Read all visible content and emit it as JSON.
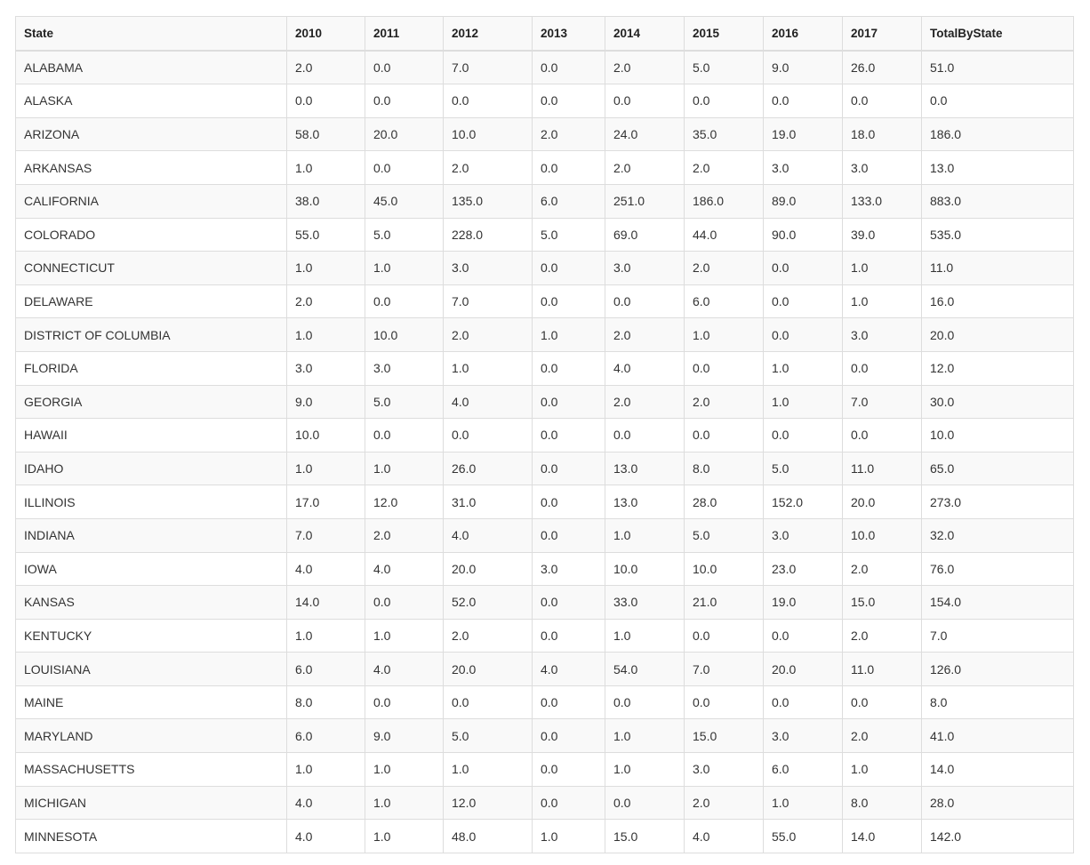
{
  "table": {
    "headers": [
      "State",
      "2010",
      "2011",
      "2012",
      "2013",
      "2014",
      "2015",
      "2016",
      "2017",
      "TotalByState"
    ],
    "rows": [
      [
        "ALABAMA",
        "2.0",
        "0.0",
        "7.0",
        "0.0",
        "2.0",
        "5.0",
        "9.0",
        "26.0",
        "51.0"
      ],
      [
        "ALASKA",
        "0.0",
        "0.0",
        "0.0",
        "0.0",
        "0.0",
        "0.0",
        "0.0",
        "0.0",
        "0.0"
      ],
      [
        "ARIZONA",
        "58.0",
        "20.0",
        "10.0",
        "2.0",
        "24.0",
        "35.0",
        "19.0",
        "18.0",
        "186.0"
      ],
      [
        "ARKANSAS",
        "1.0",
        "0.0",
        "2.0",
        "0.0",
        "2.0",
        "2.0",
        "3.0",
        "3.0",
        "13.0"
      ],
      [
        "CALIFORNIA",
        "38.0",
        "45.0",
        "135.0",
        "6.0",
        "251.0",
        "186.0",
        "89.0",
        "133.0",
        "883.0"
      ],
      [
        "COLORADO",
        "55.0",
        "5.0",
        "228.0",
        "5.0",
        "69.0",
        "44.0",
        "90.0",
        "39.0",
        "535.0"
      ],
      [
        "CONNECTICUT",
        "1.0",
        "1.0",
        "3.0",
        "0.0",
        "3.0",
        "2.0",
        "0.0",
        "1.0",
        "11.0"
      ],
      [
        "DELAWARE",
        "2.0",
        "0.0",
        "7.0",
        "0.0",
        "0.0",
        "6.0",
        "0.0",
        "1.0",
        "16.0"
      ],
      [
        "DISTRICT OF COLUMBIA",
        "1.0",
        "10.0",
        "2.0",
        "1.0",
        "2.0",
        "1.0",
        "0.0",
        "3.0",
        "20.0"
      ],
      [
        "FLORIDA",
        "3.0",
        "3.0",
        "1.0",
        "0.0",
        "4.0",
        "0.0",
        "1.0",
        "0.0",
        "12.0"
      ],
      [
        "GEORGIA",
        "9.0",
        "5.0",
        "4.0",
        "0.0",
        "2.0",
        "2.0",
        "1.0",
        "7.0",
        "30.0"
      ],
      [
        "HAWAII",
        "10.0",
        "0.0",
        "0.0",
        "0.0",
        "0.0",
        "0.0",
        "0.0",
        "0.0",
        "10.0"
      ],
      [
        "IDAHO",
        "1.0",
        "1.0",
        "26.0",
        "0.0",
        "13.0",
        "8.0",
        "5.0",
        "11.0",
        "65.0"
      ],
      [
        "ILLINOIS",
        "17.0",
        "12.0",
        "31.0",
        "0.0",
        "13.0",
        "28.0",
        "152.0",
        "20.0",
        "273.0"
      ],
      [
        "INDIANA",
        "7.0",
        "2.0",
        "4.0",
        "0.0",
        "1.0",
        "5.0",
        "3.0",
        "10.0",
        "32.0"
      ],
      [
        "IOWA",
        "4.0",
        "4.0",
        "20.0",
        "3.0",
        "10.0",
        "10.0",
        "23.0",
        "2.0",
        "76.0"
      ],
      [
        "KANSAS",
        "14.0",
        "0.0",
        "52.0",
        "0.0",
        "33.0",
        "21.0",
        "19.0",
        "15.0",
        "154.0"
      ],
      [
        "KENTUCKY",
        "1.0",
        "1.0",
        "2.0",
        "0.0",
        "1.0",
        "0.0",
        "0.0",
        "2.0",
        "7.0"
      ],
      [
        "LOUISIANA",
        "6.0",
        "4.0",
        "20.0",
        "4.0",
        "54.0",
        "7.0",
        "20.0",
        "11.0",
        "126.0"
      ],
      [
        "MAINE",
        "8.0",
        "0.0",
        "0.0",
        "0.0",
        "0.0",
        "0.0",
        "0.0",
        "0.0",
        "8.0"
      ],
      [
        "MARYLAND",
        "6.0",
        "9.0",
        "5.0",
        "0.0",
        "1.0",
        "15.0",
        "3.0",
        "2.0",
        "41.0"
      ],
      [
        "MASSACHUSETTS",
        "1.0",
        "1.0",
        "1.0",
        "0.0",
        "1.0",
        "3.0",
        "6.0",
        "1.0",
        "14.0"
      ],
      [
        "MICHIGAN",
        "4.0",
        "1.0",
        "12.0",
        "0.0",
        "0.0",
        "2.0",
        "1.0",
        "8.0",
        "28.0"
      ],
      [
        "MINNESOTA",
        "4.0",
        "1.0",
        "48.0",
        "1.0",
        "15.0",
        "4.0",
        "55.0",
        "14.0",
        "142.0"
      ]
    ]
  }
}
